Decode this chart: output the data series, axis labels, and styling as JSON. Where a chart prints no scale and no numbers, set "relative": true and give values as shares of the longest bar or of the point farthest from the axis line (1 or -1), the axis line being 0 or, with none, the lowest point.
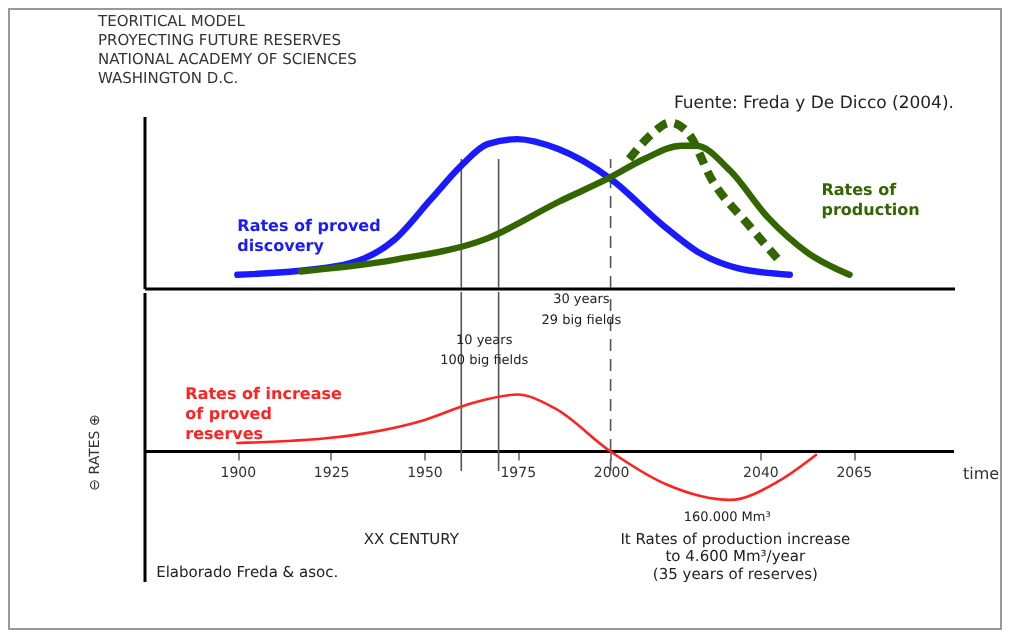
{
  "chart_data": [
    {
      "type": "line",
      "title": "TEORITICAL MODEL\nPROYECTING FUTURE RESERVES\nNATIONAL ACADEMY OF SCIENCES\nWASHINGTON D.C.",
      "relative": true,
      "xlim": [
        1875,
        2092
      ],
      "xticks": [
        1900,
        1925,
        1950,
        1975,
        2000,
        2040,
        2065
      ],
      "tick_labels": false,
      "annotations": [
        "Fuente: Freda y De Dicco (2004)."
      ],
      "ref_lines": [
        {
          "axis": "x",
          "value": 1960,
          "label": null,
          "color": "#555555",
          "line_style": "solid"
        },
        {
          "axis": "x",
          "value": 1970,
          "label": null,
          "color": "#555555",
          "line_style": "solid"
        },
        {
          "axis": "x",
          "value": 2000,
          "label": null,
          "color": "#555555",
          "line_style": "dashed"
        }
      ],
      "series": [
        {
          "name": "Rates of proved discovery",
          "color": "#1a1aff",
          "line_style": "solid",
          "x": [
            1900,
            1926,
            1942,
            1952,
            1960,
            1967,
            1975,
            1986,
            2000,
            2014,
            2024,
            2034,
            2048
          ],
          "values": [
            0.08,
            0.13,
            0.29,
            0.54,
            0.74,
            0.87,
            0.9,
            0.84,
            0.66,
            0.38,
            0.21,
            0.12,
            0.08
          ]
        },
        {
          "name": "Rates of production",
          "color": "#336600",
          "line_style": "solid",
          "x": [
            1917,
            1942,
            1967,
            1986,
            2000,
            2009,
            2019,
            2023,
            2032,
            2042,
            2053,
            2064
          ],
          "values": [
            0.1,
            0.17,
            0.3,
            0.52,
            0.67,
            0.78,
            0.86,
            0.86,
            0.71,
            0.43,
            0.21,
            0.08
          ]
        },
        {
          "color": "#336600",
          "line_style": "dashed",
          "x": [
            2005,
            2011,
            2016,
            2021,
            2027,
            2037,
            2045
          ],
          "values": [
            0.78,
            0.93,
            1.0,
            0.93,
            0.66,
            0.38,
            0.17
          ]
        }
      ]
    },
    {
      "type": "line",
      "relative": true,
      "xlim": [
        1875,
        2092
      ],
      "xticks": [
        1900,
        1925,
        1950,
        1975,
        2000,
        2040,
        2065
      ],
      "xlabel": "time",
      "ylabel": "⊖      RATES      ⊕",
      "ref_lines": [
        {
          "axis": "x",
          "value": 1960,
          "label": null,
          "color": "#555555",
          "line_style": "solid"
        },
        {
          "axis": "x",
          "value": 1970,
          "label": null,
          "color": "#555555",
          "line_style": "solid"
        },
        {
          "axis": "x",
          "value": 2000,
          "label": null,
          "color": "#555555",
          "line_style": "dashed"
        }
      ],
      "annotations": [
        "Elaborado Freda & asoc.",
        "30 years",
        "29 big fields",
        "10 years",
        "100 big fields",
        "160.000 Mm³",
        "XX CENTURY",
        "It Rates of production increase",
        "to 4.600 Mm³/year",
        "(35 years of reserves)"
      ],
      "series": [
        {
          "name": "Rates of increase of proved reserves",
          "color": "#ff2222",
          "line_style": "solid",
          "x": [
            1900,
            1925,
            1950,
            1963,
            1975,
            1985,
            2000,
            2015,
            2032,
            2045,
            2055
          ],
          "values": [
            0.15,
            0.24,
            0.55,
            0.85,
            1,
            0.76,
            0,
            -0.58,
            -0.85,
            -0.52,
            -0.06
          ]
        }
      ]
    }
  ]
}
